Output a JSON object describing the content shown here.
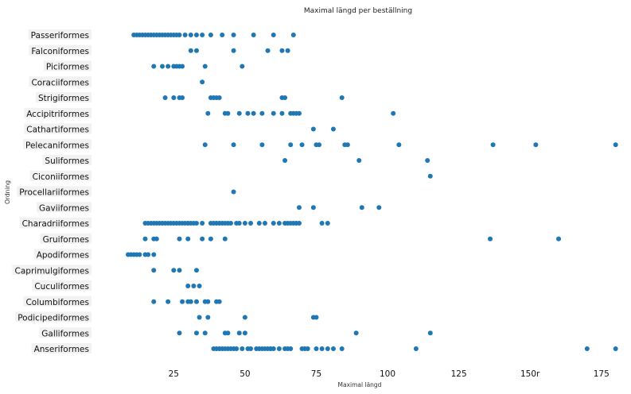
{
  "chart_data": {
    "type": "scatter",
    "title": "Maximal längd per beställning",
    "xlabel": "Maximal längd",
    "ylabel": "Ordning",
    "xlim": [
      -3,
      184
    ],
    "x_ticks": [
      25,
      50,
      75,
      100,
      125,
      150,
      175
    ],
    "x_tick_labels": [
      "25",
      "50",
      "75",
      "100",
      "125",
      "150r",
      "175"
    ],
    "grid": false,
    "point_color": "#1f77b4",
    "categories": [
      "Passeriformes",
      "Falconiformes",
      "Piciformes",
      "Coraciiformes",
      "Strigiformes",
      "Accipitriformes",
      "Cathartiformes",
      "Pelecaniformes",
      "Suliformes",
      "Ciconiiformes",
      "Procellariiformes",
      "Gaviiformes",
      "Charadriiformes",
      "Gruiformes",
      "Apodiformes",
      "Caprimulgiformes",
      "Cuculiformes",
      "Columbiformes",
      "Podicipediformes",
      "Galliformes",
      "Anseriformes"
    ],
    "points": [
      [
        11,
        12,
        13,
        14,
        15,
        16,
        17,
        18,
        19,
        20,
        21,
        22,
        23,
        24,
        25,
        26,
        27,
        29,
        31,
        33,
        35,
        38,
        42,
        46,
        53,
        60,
        67
      ],
      [
        31,
        33,
        46,
        58,
        63,
        65
      ],
      [
        18,
        21,
        23,
        25,
        26,
        27,
        28,
        36,
        49
      ],
      [
        35
      ],
      [
        22,
        25,
        27,
        28,
        38,
        39,
        40,
        41,
        63,
        64,
        84
      ],
      [
        37,
        43,
        44,
        48,
        51,
        53,
        56,
        60,
        63,
        66,
        67,
        68,
        69,
        102
      ],
      [
        74,
        81
      ],
      [
        36,
        46,
        56,
        66,
        70,
        75,
        76,
        85,
        86,
        104,
        137,
        152,
        180
      ],
      [
        64,
        90,
        114
      ],
      [
        115
      ],
      [
        46
      ],
      [
        69,
        74,
        91,
        97
      ],
      [
        15,
        16,
        17,
        18,
        19,
        20,
        21,
        22,
        23,
        24,
        25,
        26,
        27,
        28,
        29,
        30,
        31,
        32,
        33,
        35,
        38,
        39,
        40,
        41,
        42,
        43,
        44,
        45,
        47,
        48,
        50,
        52,
        55,
        57,
        60,
        62,
        64,
        65,
        66,
        67,
        68,
        69,
        77,
        79
      ],
      [
        15,
        18,
        19,
        27,
        30,
        35,
        38,
        43,
        136,
        160
      ],
      [
        9,
        10,
        11,
        12,
        13,
        15,
        16,
        18
      ],
      [
        18,
        25,
        27,
        33
      ],
      [
        30,
        32,
        34
      ],
      [
        18,
        23,
        28,
        30,
        31,
        33,
        36,
        37,
        40,
        41
      ],
      [
        34,
        37,
        50,
        74,
        75
      ],
      [
        27,
        33,
        36,
        43,
        44,
        48,
        50,
        89,
        115
      ],
      [
        39,
        40,
        41,
        42,
        43,
        44,
        45,
        46,
        47,
        49,
        51,
        52,
        54,
        55,
        56,
        57,
        58,
        59,
        60,
        62,
        64,
        65,
        66,
        70,
        71,
        72,
        75,
        77,
        79,
        81,
        84,
        110,
        170,
        180
      ]
    ]
  }
}
